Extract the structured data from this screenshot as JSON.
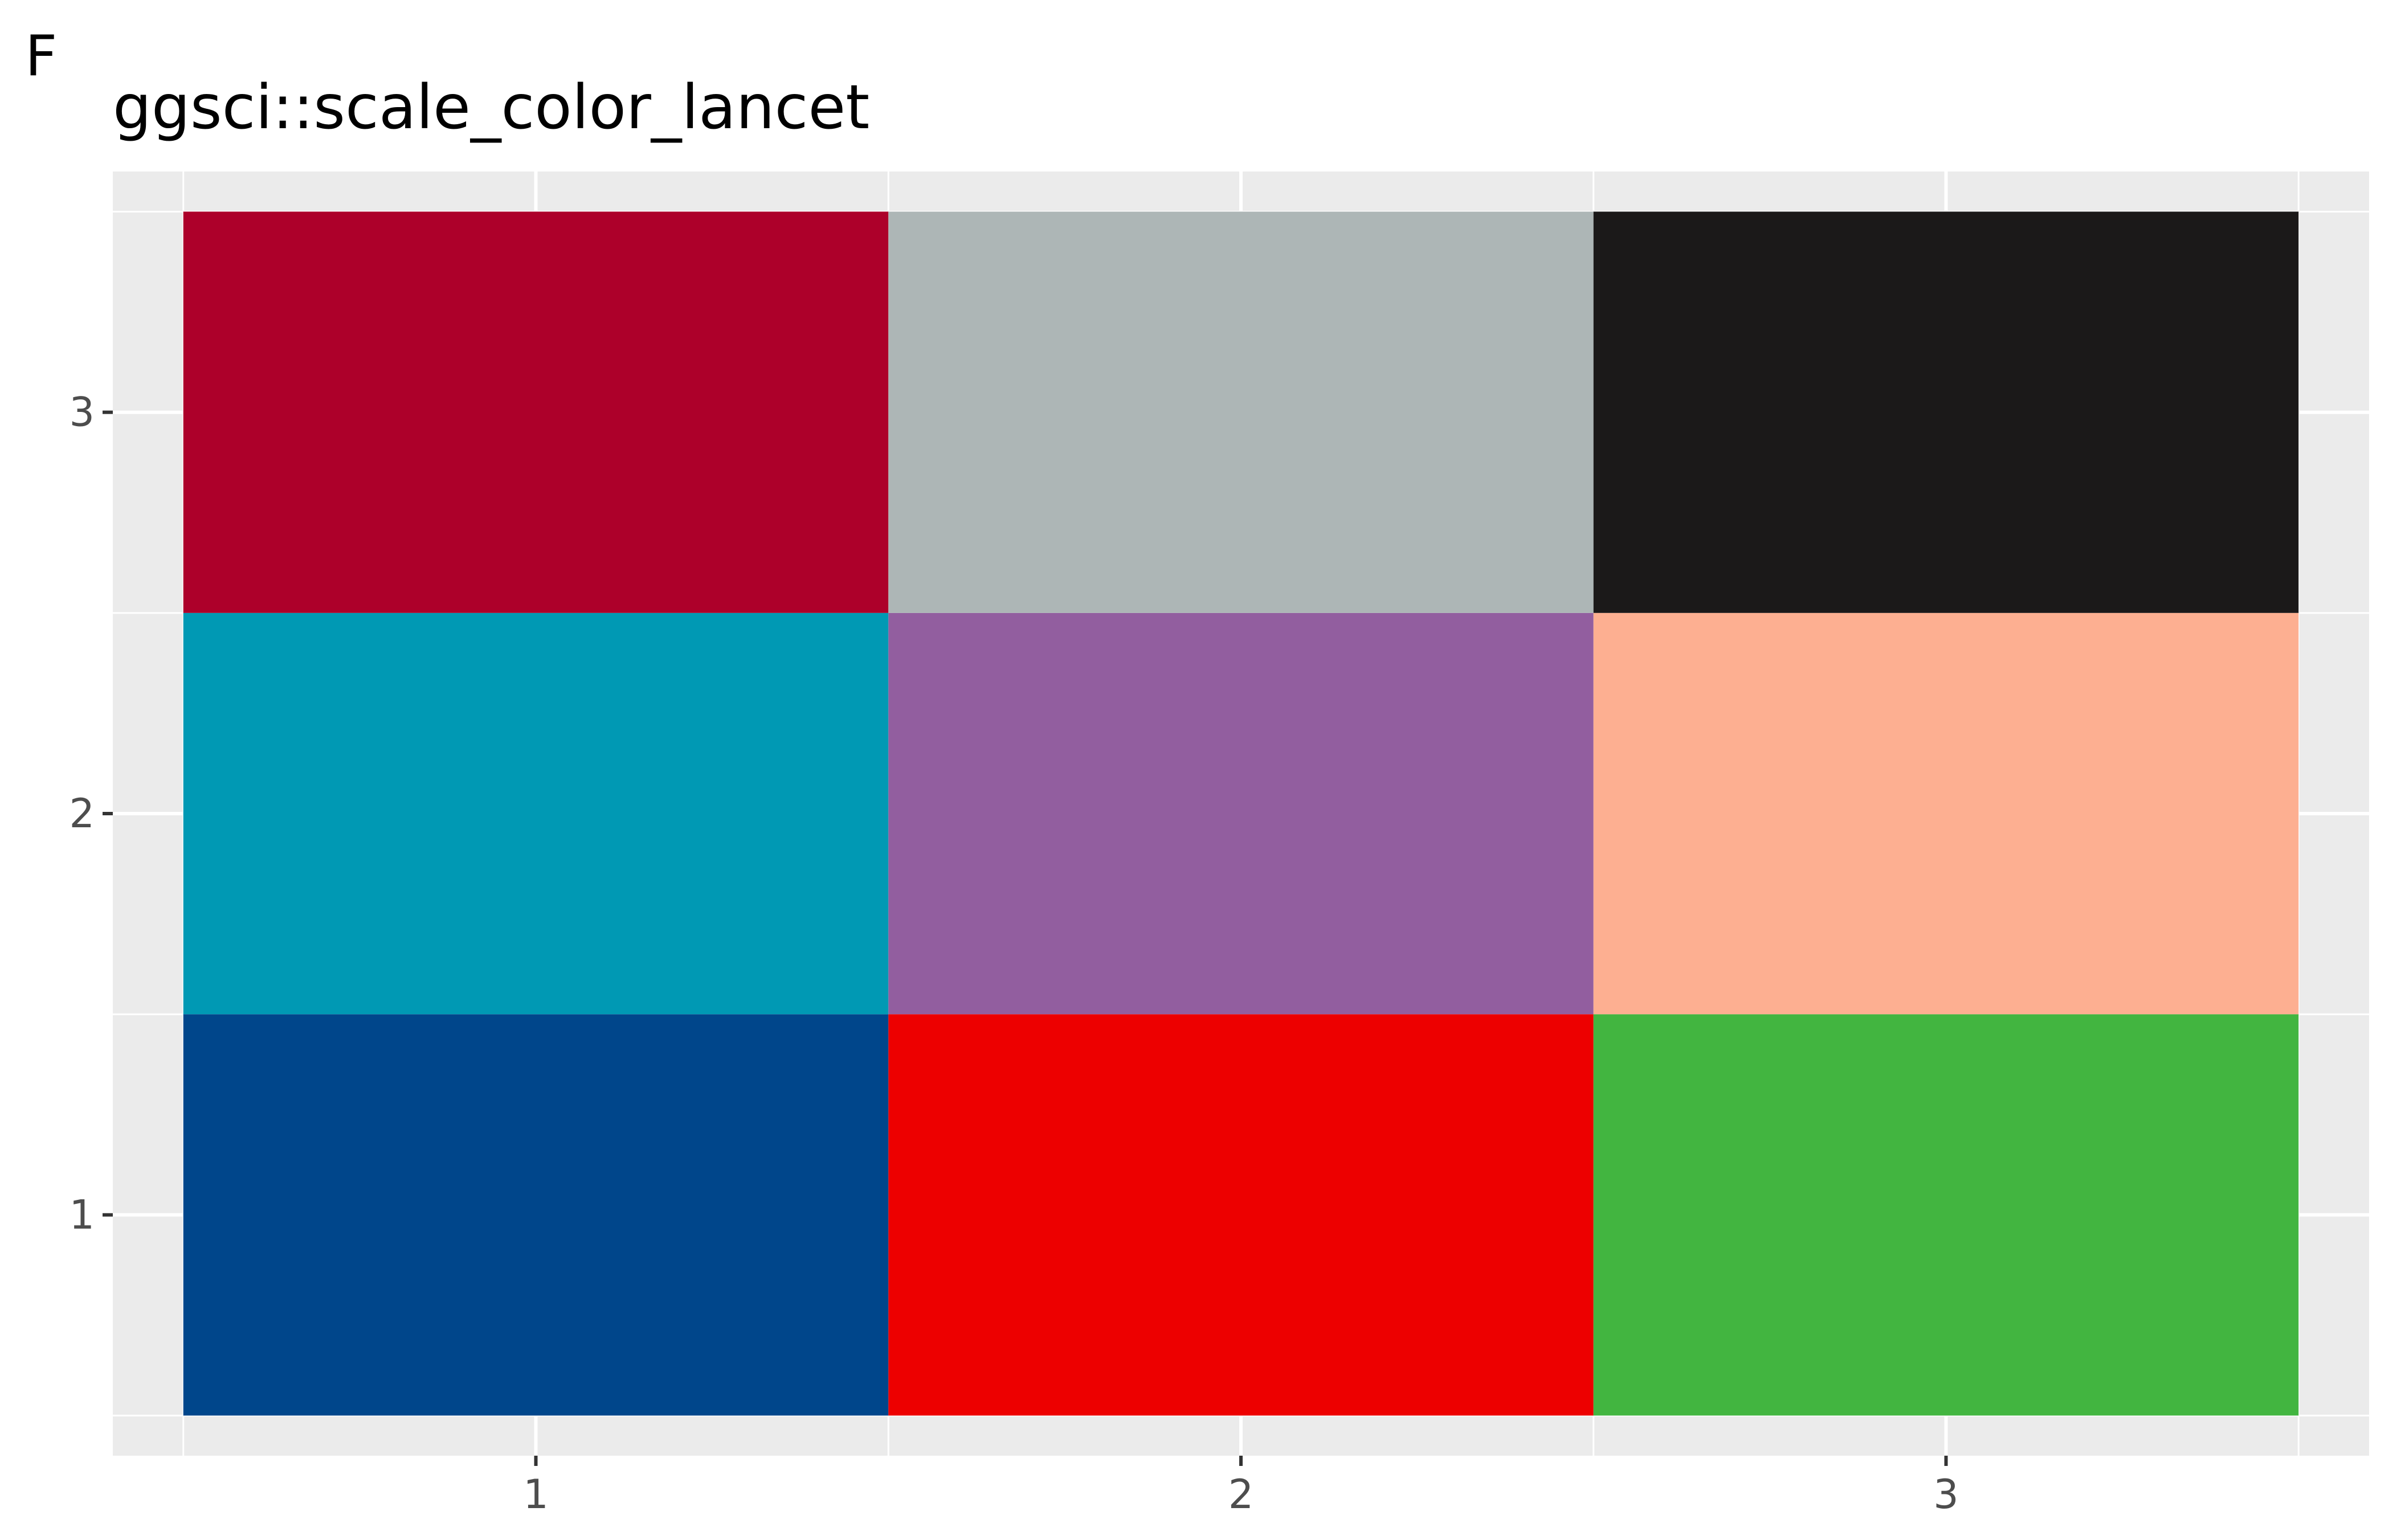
{
  "panel_tag": "F",
  "chart_data": {
    "type": "heatmap",
    "title": "ggsci::scale_color_lancet",
    "xlabel": "",
    "ylabel": "",
    "x_categories": [
      "1",
      "2",
      "3"
    ],
    "y_categories": [
      "1",
      "2",
      "3"
    ],
    "xlim": [
      0.4,
      3.6
    ],
    "ylim": [
      0.4,
      3.6
    ],
    "grid": true,
    "legend": "none",
    "background_color": "#EBEBEB",
    "grid_color": "#FFFFFF",
    "cells": [
      {
        "x": 1,
        "y": 1,
        "color": "#00468B"
      },
      {
        "x": 2,
        "y": 1,
        "color": "#ED0000"
      },
      {
        "x": 3,
        "y": 1,
        "color": "#42B540"
      },
      {
        "x": 1,
        "y": 2,
        "color": "#0099B4"
      },
      {
        "x": 2,
        "y": 2,
        "color": "#925E9F"
      },
      {
        "x": 3,
        "y": 2,
        "color": "#FDAF91"
      },
      {
        "x": 1,
        "y": 3,
        "color": "#AD002A"
      },
      {
        "x": 2,
        "y": 3,
        "color": "#ADB6B6"
      },
      {
        "x": 3,
        "y": 3,
        "color": "#1B1919"
      }
    ]
  }
}
